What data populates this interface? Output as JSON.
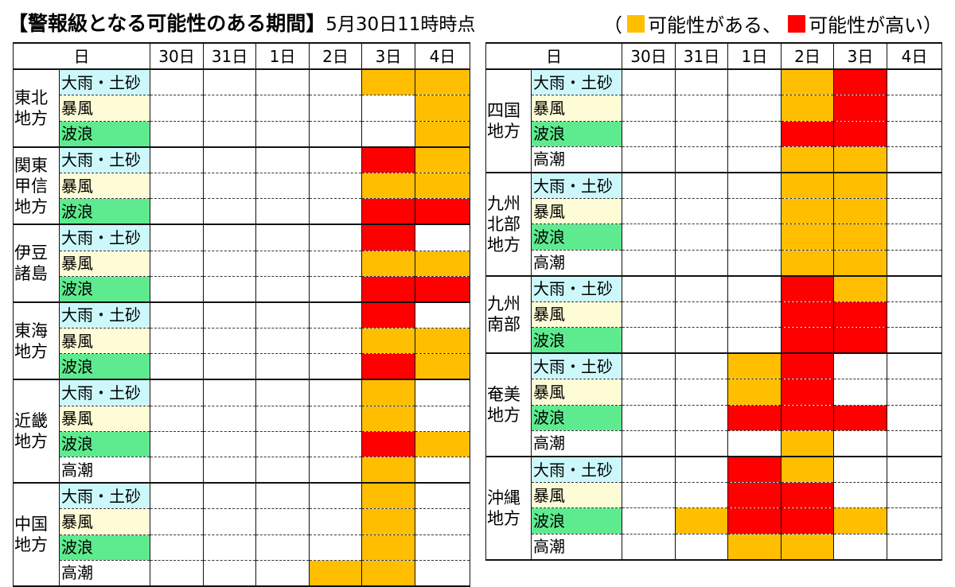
{
  "header": {
    "title": "【警報級となる可能性のある期間】",
    "timestamp": "5月30日11時時点",
    "legend": {
      "open": "（",
      "possible_label": "可能性がある、",
      "high_label": "可能性が高い）",
      "possible_color": "#ffbe00",
      "high_color": "#ff0000"
    }
  },
  "hazard_colors": {
    "大雨・土砂": "#ccf8fb",
    "暴風": "#fefcd6",
    "波浪": "#5eeb8f",
    "高潮": "#ffffff"
  },
  "level_legend": {
    "0": "none",
    "1": "可能性がある",
    "2": "可能性が高い"
  },
  "left_table": {
    "date_header": "日",
    "dates": [
      "30日",
      "31日",
      "1日",
      "2日",
      "3日",
      "4日"
    ],
    "regions": [
      {
        "name": "東北\n地方",
        "rows": [
          {
            "hazard": "大雨・土砂",
            "levels": [
              0,
              0,
              0,
              0,
              1,
              1
            ]
          },
          {
            "hazard": "暴風",
            "levels": [
              0,
              0,
              0,
              0,
              0,
              1
            ]
          },
          {
            "hazard": "波浪",
            "levels": [
              0,
              0,
              0,
              0,
              0,
              1
            ]
          }
        ]
      },
      {
        "name": "関東\n甲信\n地方",
        "rows": [
          {
            "hazard": "大雨・土砂",
            "levels": [
              0,
              0,
              0,
              0,
              2,
              1
            ]
          },
          {
            "hazard": "暴風",
            "levels": [
              0,
              0,
              0,
              0,
              1,
              1
            ]
          },
          {
            "hazard": "波浪",
            "levels": [
              0,
              0,
              0,
              0,
              2,
              2
            ]
          }
        ]
      },
      {
        "name": "伊豆\n諸島",
        "rows": [
          {
            "hazard": "大雨・土砂",
            "levels": [
              0,
              0,
              0,
              0,
              2,
              0
            ]
          },
          {
            "hazard": "暴風",
            "levels": [
              0,
              0,
              0,
              0,
              1,
              1
            ]
          },
          {
            "hazard": "波浪",
            "levels": [
              0,
              0,
              0,
              0,
              2,
              2
            ]
          }
        ]
      },
      {
        "name": "東海\n地方",
        "rows": [
          {
            "hazard": "大雨・土砂",
            "levels": [
              0,
              0,
              0,
              0,
              2,
              0
            ]
          },
          {
            "hazard": "暴風",
            "levels": [
              0,
              0,
              0,
              0,
              1,
              1
            ]
          },
          {
            "hazard": "波浪",
            "levels": [
              0,
              0,
              0,
              0,
              2,
              1
            ]
          }
        ]
      },
      {
        "name": "近畿\n地方",
        "rows": [
          {
            "hazard": "大雨・土砂",
            "levels": [
              0,
              0,
              0,
              0,
              1,
              0
            ]
          },
          {
            "hazard": "暴風",
            "levels": [
              0,
              0,
              0,
              0,
              1,
              0
            ]
          },
          {
            "hazard": "波浪",
            "levels": [
              0,
              0,
              0,
              0,
              2,
              1
            ]
          },
          {
            "hazard": "高潮",
            "levels": [
              0,
              0,
              0,
              0,
              1,
              0
            ]
          }
        ]
      },
      {
        "name": "中国\n地方",
        "rows": [
          {
            "hazard": "大雨・土砂",
            "levels": [
              0,
              0,
              0,
              0,
              1,
              0
            ]
          },
          {
            "hazard": "暴風",
            "levels": [
              0,
              0,
              0,
              0,
              1,
              0
            ]
          },
          {
            "hazard": "波浪",
            "levels": [
              0,
              0,
              0,
              0,
              1,
              0
            ]
          },
          {
            "hazard": "高潮",
            "levels": [
              0,
              0,
              0,
              1,
              1,
              0
            ]
          }
        ]
      }
    ]
  },
  "right_table": {
    "date_header": "日",
    "dates": [
      "30日",
      "31日",
      "1日",
      "2日",
      "3日",
      "4日"
    ],
    "regions": [
      {
        "name": "四国\n地方",
        "rows": [
          {
            "hazard": "大雨・土砂",
            "levels": [
              0,
              0,
              0,
              1,
              2,
              0
            ]
          },
          {
            "hazard": "暴風",
            "levels": [
              0,
              0,
              0,
              1,
              2,
              0
            ]
          },
          {
            "hazard": "波浪",
            "levels": [
              0,
              0,
              0,
              2,
              2,
              0
            ]
          },
          {
            "hazard": "高潮",
            "levels": [
              0,
              0,
              0,
              1,
              1,
              0
            ]
          }
        ]
      },
      {
        "name": "九州\n北部\n地方",
        "rows": [
          {
            "hazard": "大雨・土砂",
            "levels": [
              0,
              0,
              0,
              1,
              1,
              0
            ]
          },
          {
            "hazard": "暴風",
            "levels": [
              0,
              0,
              0,
              1,
              1,
              0
            ]
          },
          {
            "hazard": "波浪",
            "levels": [
              0,
              0,
              0,
              1,
              1,
              0
            ]
          },
          {
            "hazard": "高潮",
            "levels": [
              0,
              0,
              0,
              1,
              1,
              0
            ]
          }
        ]
      },
      {
        "name": "九州\n南部",
        "rows": [
          {
            "hazard": "大雨・土砂",
            "levels": [
              0,
              0,
              0,
              2,
              1,
              0
            ]
          },
          {
            "hazard": "暴風",
            "levels": [
              0,
              0,
              0,
              2,
              2,
              0
            ]
          },
          {
            "hazard": "波浪",
            "levels": [
              0,
              0,
              0,
              2,
              2,
              0
            ]
          }
        ]
      },
      {
        "name": "奄美\n地方",
        "rows": [
          {
            "hazard": "大雨・土砂",
            "levels": [
              0,
              0,
              1,
              2,
              0,
              0
            ]
          },
          {
            "hazard": "暴風",
            "levels": [
              0,
              0,
              1,
              2,
              0,
              0
            ]
          },
          {
            "hazard": "波浪",
            "levels": [
              0,
              0,
              2,
              2,
              2,
              0
            ]
          },
          {
            "hazard": "高潮",
            "levels": [
              0,
              0,
              0,
              1,
              0,
              0
            ]
          }
        ]
      },
      {
        "name": "沖縄\n地方",
        "rows": [
          {
            "hazard": "大雨・土砂",
            "levels": [
              0,
              0,
              2,
              1,
              0,
              0
            ]
          },
          {
            "hazard": "暴風",
            "levels": [
              0,
              0,
              2,
              2,
              0,
              0
            ]
          },
          {
            "hazard": "波浪",
            "levels": [
              0,
              1,
              2,
              2,
              1,
              0
            ]
          },
          {
            "hazard": "高潮",
            "levels": [
              0,
              0,
              1,
              1,
              0,
              0
            ]
          }
        ]
      }
    ]
  }
}
